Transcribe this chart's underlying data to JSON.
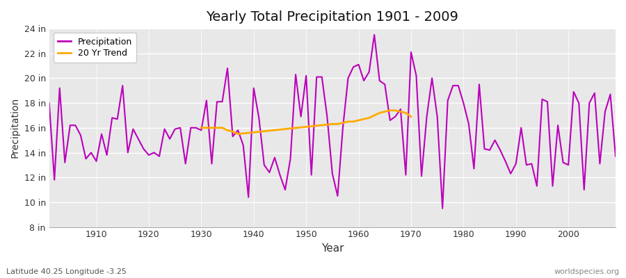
{
  "title": "Yearly Total Precipitation 1901 - 2009",
  "xlabel": "Year",
  "ylabel": "Precipitation",
  "lat_lon_label": "Latitude 40.25 Longitude -3.25",
  "watermark": "worldspecies.org",
  "fig_bg_color": "#ffffff",
  "plot_bg_color": "#e8e8e8",
  "grid_color": "#ffffff",
  "precip_color": "#bb00bb",
  "trend_color": "#ffaa00",
  "ylim": [
    8,
    24
  ],
  "yticks": [
    8,
    10,
    12,
    14,
    16,
    18,
    20,
    22,
    24
  ],
  "ytick_labels": [
    "8 in",
    "10 in",
    "12 in",
    "14 in",
    "16 in",
    "18 in",
    "20 in",
    "22 in",
    "24 in"
  ],
  "years": [
    1901,
    1902,
    1903,
    1904,
    1905,
    1906,
    1907,
    1908,
    1909,
    1910,
    1911,
    1912,
    1913,
    1914,
    1915,
    1916,
    1917,
    1918,
    1919,
    1920,
    1921,
    1922,
    1923,
    1924,
    1925,
    1926,
    1927,
    1928,
    1929,
    1930,
    1931,
    1932,
    1933,
    1934,
    1935,
    1936,
    1937,
    1938,
    1939,
    1940,
    1941,
    1942,
    1943,
    1944,
    1945,
    1946,
    1947,
    1948,
    1949,
    1950,
    1951,
    1952,
    1953,
    1954,
    1955,
    1956,
    1957,
    1958,
    1959,
    1960,
    1961,
    1962,
    1963,
    1964,
    1965,
    1966,
    1967,
    1968,
    1969,
    1970,
    1971,
    1972,
    1973,
    1974,
    1975,
    1976,
    1977,
    1978,
    1979,
    1980,
    1981,
    1982,
    1983,
    1984,
    1985,
    1986,
    1987,
    1988,
    1989,
    1990,
    1991,
    1992,
    1993,
    1994,
    1995,
    1996,
    1997,
    1998,
    1999,
    2000,
    2001,
    2002,
    2003,
    2004,
    2005,
    2006,
    2007,
    2008,
    2009
  ],
  "precip": [
    18.0,
    11.8,
    19.2,
    13.2,
    16.2,
    16.2,
    15.4,
    13.5,
    14.0,
    13.3,
    15.5,
    13.8,
    16.8,
    16.7,
    19.4,
    14.0,
    15.9,
    15.1,
    14.3,
    13.8,
    14.0,
    13.7,
    15.9,
    15.1,
    15.9,
    16.0,
    13.1,
    16.0,
    16.0,
    15.8,
    18.2,
    13.1,
    18.1,
    18.1,
    20.8,
    15.3,
    15.8,
    14.6,
    10.4,
    19.2,
    16.8,
    13.0,
    12.4,
    13.6,
    12.2,
    11.0,
    13.5,
    20.3,
    16.9,
    20.2,
    12.2,
    20.1,
    20.1,
    16.9,
    12.3,
    10.5,
    16.0,
    20.0,
    20.9,
    21.1,
    19.8,
    20.5,
    23.5,
    19.8,
    19.5,
    16.6,
    16.9,
    17.5,
    12.2,
    22.1,
    20.2,
    12.1,
    16.9,
    20.0,
    16.9,
    9.5,
    18.2,
    19.4,
    19.4,
    18.0,
    16.3,
    12.7,
    19.5,
    14.3,
    14.2,
    15.0,
    14.2,
    13.3,
    12.3,
    13.1,
    16.0,
    13.0,
    13.1,
    11.3,
    18.3,
    18.1,
    11.3,
    16.2,
    13.2,
    13.0,
    18.9,
    18.0,
    11.0,
    18.0,
    18.8,
    13.1,
    17.3,
    18.7,
    13.7
  ],
  "trend_years": [
    1930,
    1931,
    1932,
    1933,
    1934,
    1935,
    1936,
    1937,
    1955,
    1956,
    1957,
    1958,
    1959,
    1960,
    1961,
    1962,
    1963,
    1964,
    1965,
    1966,
    1967,
    1968,
    1969,
    1970
  ],
  "trend_vals": [
    16.0,
    16.0,
    16.0,
    16.0,
    16.0,
    15.8,
    15.7,
    15.5,
    16.3,
    16.3,
    16.4,
    16.5,
    16.5,
    16.6,
    16.7,
    16.8,
    17.0,
    17.2,
    17.3,
    17.4,
    17.4,
    17.3,
    17.2,
    16.9
  ],
  "xticks": [
    1910,
    1920,
    1930,
    1940,
    1950,
    1960,
    1970,
    1980,
    1990,
    2000
  ]
}
